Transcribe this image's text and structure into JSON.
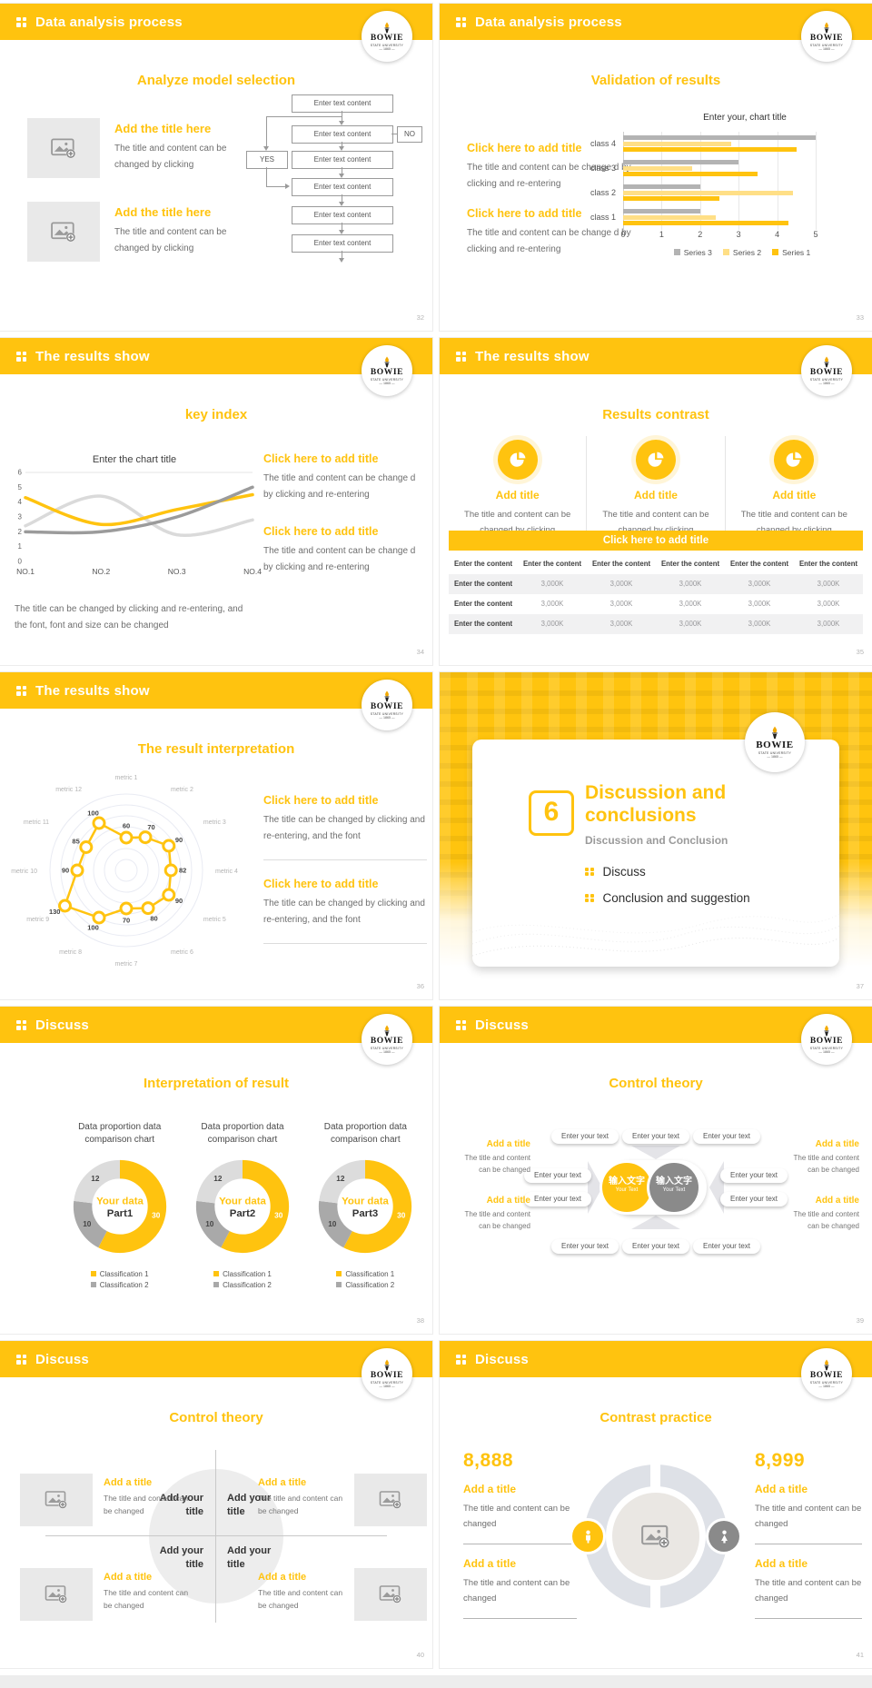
{
  "theme": {
    "yellow": "#FFC30F",
    "light_yellow": "#FFDF86",
    "bar_gray": "#B3B3B3",
    "heading_text": "#404040",
    "body_text": "#6E6E6E",
    "ring_gray": "#DEE1E7"
  },
  "logo": {
    "name": "BOWIE",
    "subtitle": "STATE UNIVERSITY",
    "year": "1865"
  },
  "slides": [
    {
      "header": "Data analysis process",
      "page": "32",
      "title": "Analyze model selection",
      "items": [
        {
          "heading": "Add the title here",
          "body": "The title and content can be changed by clicking"
        },
        {
          "heading": "Add the title here",
          "body": "The title and content can be changed by clicking"
        }
      ],
      "flow": {
        "boxes": [
          "Enter text content",
          "Enter text content",
          "Enter text content",
          "Enter text content",
          "Enter text content",
          "Enter text content"
        ],
        "yes_label": "YES",
        "no_label": "NO"
      }
    },
    {
      "header": "Data analysis process",
      "page": "33",
      "title": "Validation of results",
      "items": [
        {
          "heading": "Click here to add title",
          "body": "The title and content can be change d by clicking and re-entering"
        },
        {
          "heading": "Click here to add title",
          "body": "The title and content can be change d by clicking and re-entering"
        }
      ]
    },
    {
      "header": "The results show",
      "page": "34",
      "title": "key index",
      "items": [
        {
          "heading": "Click here to add title",
          "body": "The title and content can be change d by clicking and re-entering"
        },
        {
          "heading": "Click here to add title",
          "body": "The title and content can be change d by clicking and re-entering"
        }
      ],
      "caption": "The title can be changed by clicking and re-entering, and the font, font and size can be changed"
    },
    {
      "header": "The results show",
      "page": "35",
      "title": "Results contrast",
      "banner": "Click here to add title",
      "features": [
        {
          "icon": "pie-icon",
          "heading": "Add title",
          "body": "The title and content can be changed by clicking"
        },
        {
          "icon": "pie-icon",
          "heading": "Add title",
          "body": "The title and content can be changed by clicking"
        },
        {
          "icon": "pie-icon",
          "heading": "Add title",
          "body": "The title and content can be changed by clicking"
        }
      ],
      "table": {
        "header": [
          "Enter the content",
          "Enter the content",
          "Enter the content",
          "Enter the content",
          "Enter the content",
          "Enter the content"
        ],
        "rows": [
          [
            "Enter the content",
            "3,000K",
            "3,000K",
            "3,000K",
            "3,000K",
            "3,000K"
          ],
          [
            "Enter the content",
            "3,000K",
            "3,000K",
            "3,000K",
            "3,000K",
            "3,000K"
          ],
          [
            "Enter the content",
            "3,000K",
            "3,000K",
            "3,000K",
            "3,000K",
            "3,000K"
          ]
        ]
      }
    },
    {
      "header": "The results show",
      "page": "36",
      "title": "The result interpretation",
      "items": [
        {
          "heading": "Click here to add title",
          "body": "The title can be changed by clicking and re-entering, and the font"
        },
        {
          "heading": "Click here to add title",
          "body": "The title can be changed by clicking and re-entering, and the font"
        }
      ]
    },
    {
      "page": "37",
      "number": "6",
      "title_line1": "Discussion and",
      "title_line2": "conclusions",
      "subtitle": "Discussion and Conclusion",
      "bullets": [
        "Discuss",
        "Conclusion and suggestion"
      ]
    },
    {
      "header": "Discuss",
      "page": "38",
      "title": "Interpretation of result",
      "chart_caption": "Data proportion data comparison chart",
      "center_label": "Your data",
      "parts": [
        "Part1",
        "Part2",
        "Part3"
      ],
      "legend": [
        "Classification 1",
        "Classification 2"
      ]
    },
    {
      "header": "Discuss",
      "page": "39",
      "title": "Control theory",
      "pill": "Enter your text",
      "center": [
        {
          "cn": "输入文字",
          "en": "Your Text"
        },
        {
          "cn": "输入文字",
          "en": "Your Text"
        }
      ],
      "sides": [
        {
          "heading": "Add a title",
          "body": "The title and content can be changed"
        },
        {
          "heading": "Add a title",
          "body": "The title and content can be changed"
        },
        {
          "heading": "Add a title",
          "body": "The title and content can be changed"
        },
        {
          "heading": "Add a title",
          "body": "The title and content can be changed"
        }
      ]
    },
    {
      "header": "Discuss",
      "page": "40",
      "title": "Control theory",
      "quad_label": "Add your title",
      "corners": [
        {
          "heading": "Add a title",
          "body": "The title and content can be changed"
        },
        {
          "heading": "Add a title",
          "body": "The title and content can be changed"
        },
        {
          "heading": "Add a title",
          "body": "The title and content can be changed"
        },
        {
          "heading": "Add a title",
          "body": "The title and content can be changed"
        }
      ]
    },
    {
      "header": "Discuss",
      "page": "41",
      "title": "Contrast practice",
      "left_value": "8,888",
      "right_value": "8,999",
      "items": [
        {
          "heading": "Add a title",
          "body": "The title and content can be changed"
        },
        {
          "heading": "Add a title",
          "body": "The title and content can be changed"
        },
        {
          "heading": "Add a title",
          "body": "The title and content can be changed"
        },
        {
          "heading": "Add a title",
          "body": "The title and content can be changed"
        }
      ]
    }
  ],
  "chart_data": [
    {
      "type": "bar",
      "orientation": "horizontal",
      "title": "Enter your, chart title",
      "categories": [
        "class 1",
        "class 2",
        "class 3",
        "class 4"
      ],
      "category_order_top_to_bottom": [
        "class 4",
        "class 3",
        "class 2",
        "class 1"
      ],
      "series": [
        {
          "name": "Series 1",
          "color": "#FFC30F",
          "values": [
            4.3,
            2.5,
            3.5,
            4.5
          ]
        },
        {
          "name": "Series 2",
          "color": "#FFDF86",
          "values": [
            2.4,
            4.4,
            1.8,
            2.8
          ]
        },
        {
          "name": "Series 3",
          "color": "#B3B3B3",
          "values": [
            2,
            2,
            3,
            5
          ]
        }
      ],
      "bar_order_top_to_bottom": [
        "Series 3",
        "Series 2",
        "Series 1"
      ],
      "xlim": [
        0,
        5
      ],
      "xticks": [
        "0",
        "1",
        "2",
        "3",
        "4",
        "5"
      ],
      "legend": [
        "Series 3",
        "Series 2",
        "Series 1"
      ],
      "legend_position": "bottom",
      "grid": true
    },
    {
      "type": "line",
      "smooth": true,
      "title": "Enter the chart title",
      "x": [
        "NO.1",
        "NO.2",
        "NO.3",
        "NO.4"
      ],
      "ylim": [
        0,
        6
      ],
      "yticks": [
        "0",
        "1",
        "2",
        "3",
        "4",
        "5",
        "6"
      ],
      "series": [
        {
          "name": "Series 2",
          "color": "#DADADA",
          "values": [
            2.4,
            4.4,
            1.8,
            2.8
          ]
        },
        {
          "name": "Series 1",
          "color": "#FFC30F",
          "values": [
            4.3,
            2.5,
            3.5,
            4.5
          ]
        },
        {
          "name": "Series 3",
          "color": "#9B9B9B",
          "values": [
            2,
            2,
            3,
            5
          ]
        }
      ],
      "legend_position": "none",
      "grid": "top-line-only"
    },
    {
      "type": "radar",
      "categories": [
        "metric 1",
        "metric 2",
        "metric 3",
        "metric 4",
        "metric 5",
        "metric 6",
        "metric 7",
        "metric 8",
        "metric 9",
        "metric 10",
        "metric 11",
        "metric 12"
      ],
      "values": [
        60,
        70,
        90,
        82,
        90,
        80,
        70,
        100,
        130,
        90,
        85,
        100
      ],
      "rmax": 140,
      "rings": 7,
      "line_color": "#FFC30F",
      "marker": "circle"
    },
    {
      "type": "pie",
      "variant": "donut",
      "title": "Data proportion data comparison chart",
      "slices": [
        {
          "label": "Classification 1",
          "value": 30,
          "color": "#FFC30F",
          "text_color": "#ffffff"
        },
        {
          "label": "Classification 2",
          "value": 10,
          "color": "#A9A9A9",
          "text_color": "#444444"
        },
        {
          "label": "Classification 2",
          "value": 12,
          "color": "#DCDCDC",
          "text_color": "#444444"
        }
      ],
      "order": "clockwise from top",
      "legend": [
        "Classification 1",
        "Classification 2"
      ],
      "legend_position": "bottom"
    }
  ]
}
